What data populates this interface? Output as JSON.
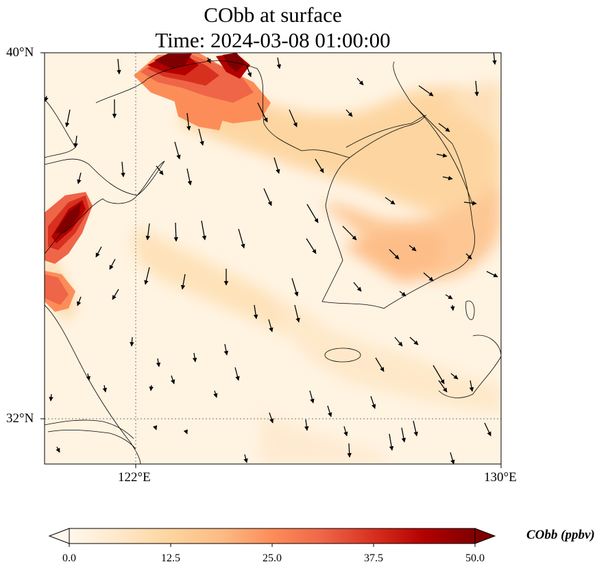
{
  "title": {
    "line1": "CObb at surface",
    "line2": "Time: 2024-03-08 01:00:00"
  },
  "map": {
    "lon_labels": [
      "122°E",
      "130°E"
    ],
    "lat_labels": [
      "40°N",
      "32°N"
    ],
    "extent": {
      "lon_min": 120.0,
      "lon_max": 130.0,
      "lat_min": 31.0,
      "lat_max": 40.0
    },
    "gridlines": {
      "lon": [
        122.0
      ],
      "lat": [
        32.0
      ],
      "style": "dotted"
    }
  },
  "colorbar": {
    "label": "CObb (ppbv)",
    "ticks": [
      "0.0",
      "12.5",
      "25.0",
      "37.5",
      "50.0"
    ],
    "range": [
      0,
      50
    ],
    "cmap": [
      "#fff7ec",
      "#fee8c8",
      "#fdd49e",
      "#fdbb84",
      "#fc8d59",
      "#ef6548",
      "#d7301f",
      "#b30000",
      "#7f0000"
    ],
    "extend": "both"
  },
  "colors": {
    "land_border": "#000000",
    "gridline": "#777777",
    "arrow": "#000000"
  }
}
